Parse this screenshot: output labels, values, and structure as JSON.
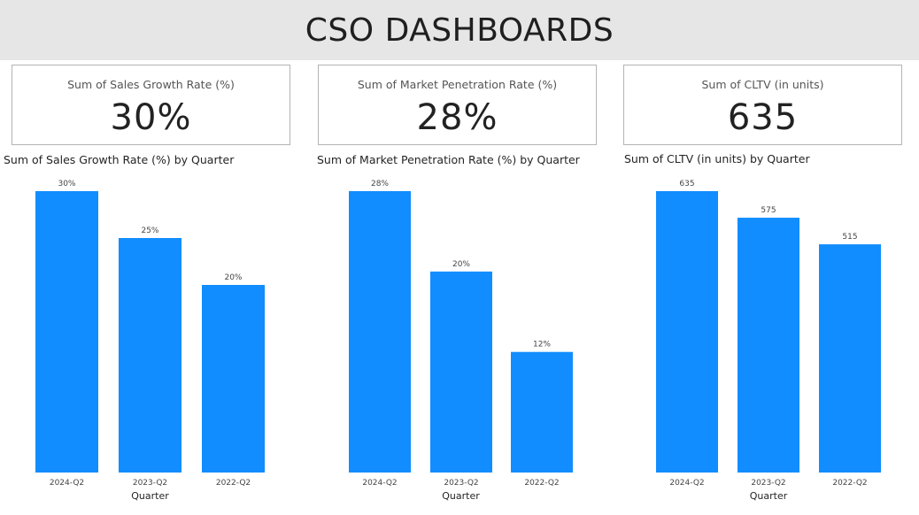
{
  "header": {
    "title": "CSO DASHBOARDS"
  },
  "cards": [
    {
      "label": "Sum of Sales Growth Rate (%)",
      "value": "30%"
    },
    {
      "label": "Sum of Market Penetration Rate (%)",
      "value": "28%"
    },
    {
      "label": "Sum of CLTV (in units)",
      "value": "635"
    }
  ],
  "colors": {
    "bar": "#118dff",
    "header_bg": "#e6e6e6"
  },
  "chart_data": [
    {
      "type": "bar",
      "title": "Sum of Sales Growth Rate (%) by Quarter",
      "xlabel": "Quarter",
      "ylabel": "",
      "categories": [
        "2024-Q2",
        "2023-Q2",
        "2022-Q2"
      ],
      "values": [
        30,
        25,
        20
      ],
      "data_labels": [
        "30%",
        "25%",
        "20%"
      ],
      "ylim": [
        0,
        30
      ],
      "grid": false
    },
    {
      "type": "bar",
      "title": "Sum of Market Penetration Rate (%) by Quarter",
      "xlabel": "Quarter",
      "ylabel": "",
      "categories": [
        "2024-Q2",
        "2023-Q2",
        "2022-Q2"
      ],
      "values": [
        28,
        20,
        12
      ],
      "data_labels": [
        "28%",
        "20%",
        "12%"
      ],
      "ylim": [
        0,
        28
      ],
      "grid": false
    },
    {
      "type": "bar",
      "title": "Sum of CLTV (in units) by Quarter",
      "xlabel": "Quarter",
      "ylabel": "",
      "categories": [
        "2024-Q2",
        "2023-Q2",
        "2022-Q2"
      ],
      "values": [
        635,
        575,
        515
      ],
      "data_labels": [
        "635",
        "575",
        "515"
      ],
      "ylim": [
        0,
        635
      ],
      "grid": false
    }
  ]
}
